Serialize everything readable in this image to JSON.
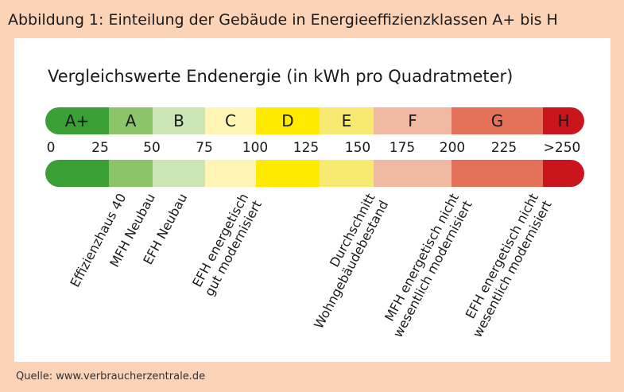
{
  "figure_title": "Abbildung 1: Einteilung der Gebäude in Energieeffizienzklassen A+ bis H",
  "chart_title": "Vergleichswerte Endenergie (in kWh pro Quadratmeter)",
  "classes": [
    {
      "label": "A+",
      "color": "#3aa035"
    },
    {
      "label": "A",
      "color": "#8cc46a"
    },
    {
      "label": "B",
      "color": "#cce5b4"
    },
    {
      "label": "C",
      "color": "#fff5b5"
    },
    {
      "label": "D",
      "color": "#ffea00"
    },
    {
      "label": "E",
      "color": "#f6ea70"
    },
    {
      "label": "F",
      "color": "#f1b9a2"
    },
    {
      "label": "G",
      "color": "#e37258"
    },
    {
      "label": "H",
      "color": "#c9151b"
    }
  ],
  "ticks": [
    "0",
    "25",
    "50",
    "75",
    "100",
    "125",
    "150",
    "175",
    "200",
    "225",
    ">250"
  ],
  "building_labels": [
    {
      "lines": [
        "Effizienzhaus 40"
      ]
    },
    {
      "lines": [
        "MFH Neubau"
      ]
    },
    {
      "lines": [
        "EFH Neubau"
      ]
    },
    {
      "lines": [
        "EFH energetisch",
        "gut modernisiert"
      ]
    },
    {
      "lines": [
        "Durchschnitt",
        "Wohngebäudebestand"
      ]
    },
    {
      "lines": [
        "MFH energetisch nicht",
        "wesentlich modernisiert"
      ]
    },
    {
      "lines": [
        "EFH energetisch nicht",
        "wesentlich modernisiert"
      ]
    }
  ],
  "source": "Quelle: www.verbraucherzentrale.de"
}
